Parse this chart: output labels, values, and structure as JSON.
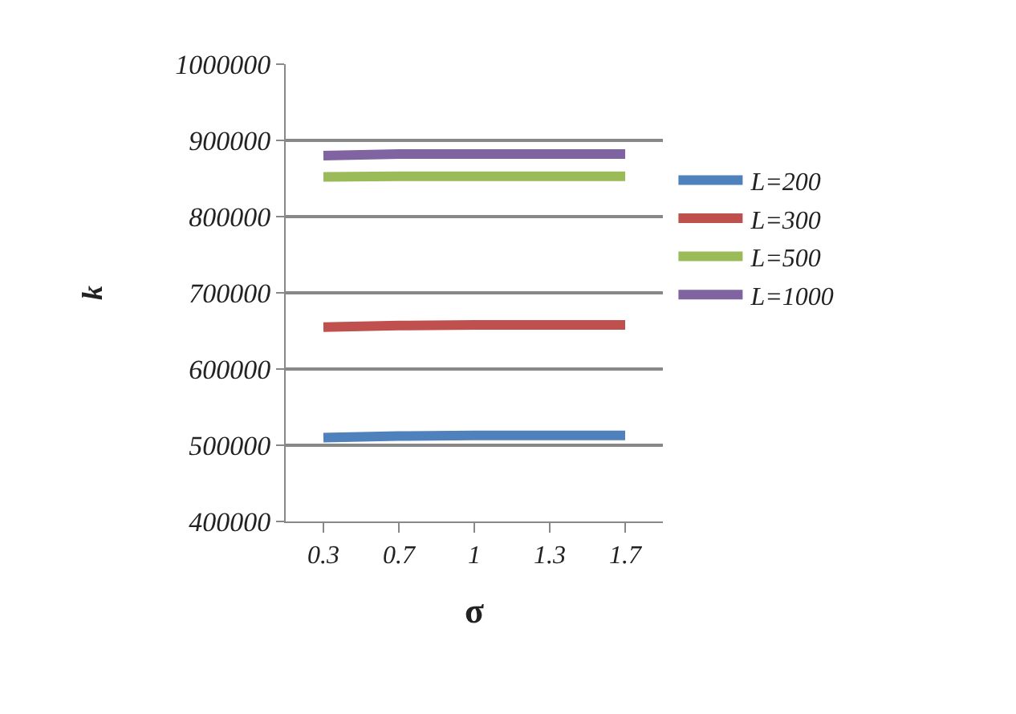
{
  "chart_data": {
    "type": "line",
    "xlabel": "σ",
    "ylabel": "k",
    "categories": [
      "0.3",
      "0.7",
      "1",
      "1.3",
      "1.7"
    ],
    "series": [
      {
        "name": "L=200",
        "color": "#4f81bd",
        "values": [
          510000,
          512000,
          513000,
          513000,
          513000
        ]
      },
      {
        "name": "L=300",
        "color": "#c0504d",
        "values": [
          655000,
          657000,
          658000,
          658000,
          658000
        ]
      },
      {
        "name": "L=500",
        "color": "#9bbb59",
        "values": [
          852000,
          853000,
          853000,
          853000,
          853000
        ]
      },
      {
        "name": "L=1000",
        "color": "#8064a2",
        "values": [
          880000,
          882000,
          882000,
          882000,
          882000
        ]
      }
    ],
    "ylim": [
      400000,
      1000000
    ],
    "yticks": [
      400000,
      500000,
      600000,
      700000,
      800000,
      900000,
      1000000
    ],
    "grid": "y",
    "legend": "right",
    "marker": "none",
    "line_style": "solid"
  }
}
